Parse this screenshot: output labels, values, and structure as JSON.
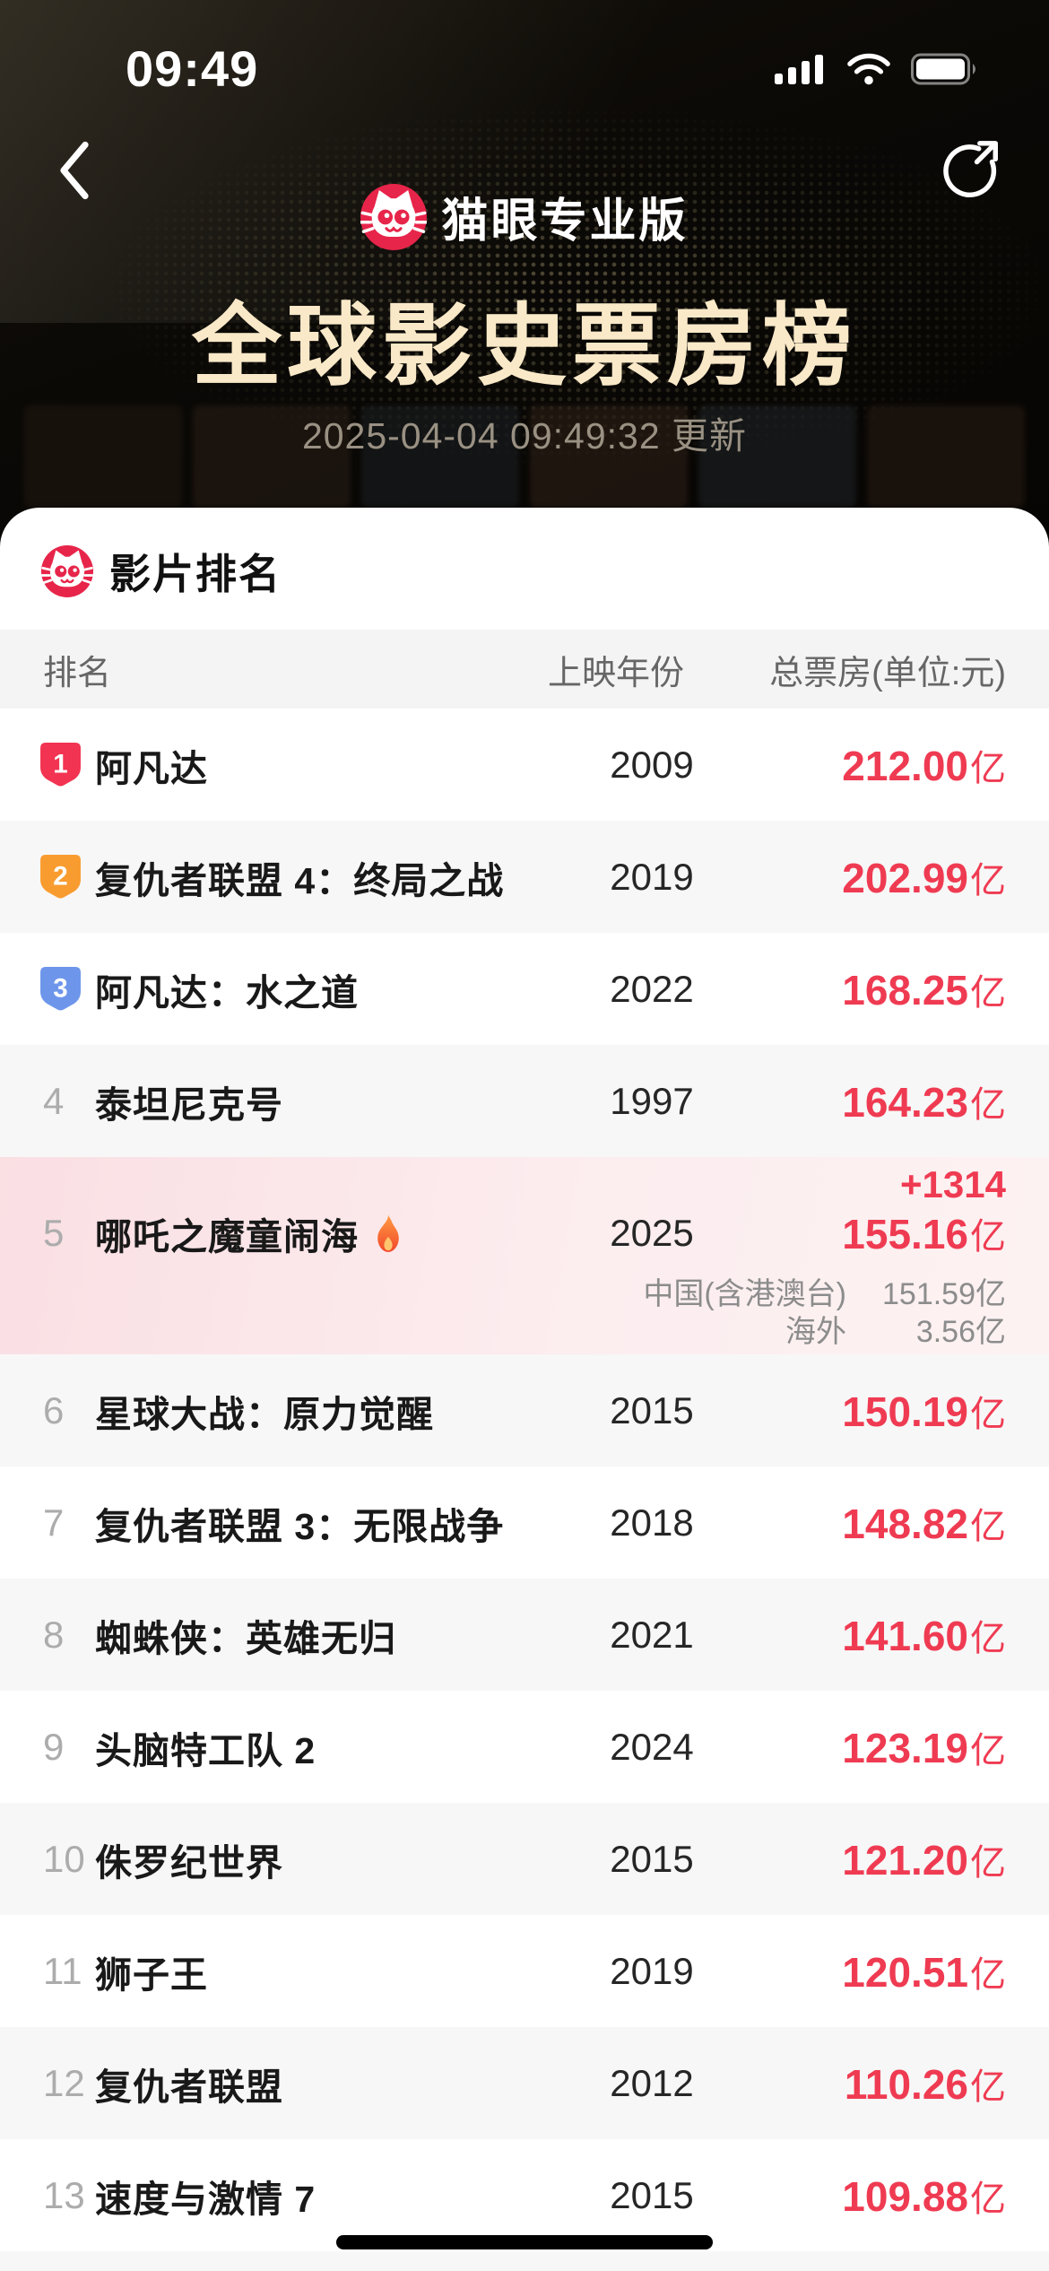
{
  "status_bar": {
    "time": "09:49",
    "icons": [
      "signal-bars-icon",
      "wifi-icon",
      "battery-full-icon"
    ]
  },
  "nav": {
    "back_icon": "chevron-left-icon",
    "share_icon": "share-arrow-icon"
  },
  "hero": {
    "app_name": "猫眼专业版",
    "logo_icon": "maoyan-cat-icon",
    "title": "全球影史票房榜",
    "updated": "2025-04-04 09:49:32 更新"
  },
  "card": {
    "section_title": "影片排名",
    "table": {
      "headers": {
        "rank": "排名",
        "year": "上映年份",
        "gross": "总票房(单位:元)"
      },
      "unit_suffix": "亿",
      "rows": [
        {
          "rank": 1,
          "badge_color": "#F23351",
          "title": "阿凡达",
          "year": "2009",
          "gross": "212.00"
        },
        {
          "rank": 2,
          "badge_color": "#F99C2F",
          "title": "复仇者联盟 4：终局之战",
          "year": "2019",
          "gross": "202.99"
        },
        {
          "rank": 3,
          "badge_color": "#6D96EB",
          "title": "阿凡达：水之道",
          "year": "2022",
          "gross": "168.25"
        },
        {
          "rank": 4,
          "title": "泰坦尼克号",
          "year": "1997",
          "gross": "164.23"
        },
        {
          "rank": 5,
          "title": "哪吒之魔童闹海",
          "year": "2025",
          "gross": "155.16",
          "hot": true,
          "highlight": true,
          "delta": "+1314",
          "breakdown": [
            {
              "label": "中国(含港澳台)",
              "value": "151.59亿"
            },
            {
              "label": "海外",
              "value": "3.56亿"
            }
          ]
        },
        {
          "rank": 6,
          "title": "星球大战：原力觉醒",
          "year": "2015",
          "gross": "150.19"
        },
        {
          "rank": 7,
          "title": "复仇者联盟 3：无限战争",
          "year": "2018",
          "gross": "148.82"
        },
        {
          "rank": 8,
          "title": "蜘蛛侠：英雄无归",
          "year": "2021",
          "gross": "141.60"
        },
        {
          "rank": 9,
          "title": "头脑特工队 2",
          "year": "2024",
          "gross": "123.19"
        },
        {
          "rank": 10,
          "title": "侏罗纪世界",
          "year": "2015",
          "gross": "121.20"
        },
        {
          "rank": 11,
          "title": "狮子王",
          "year": "2019",
          "gross": "120.51"
        },
        {
          "rank": 12,
          "title": "复仇者联盟",
          "year": "2012",
          "gross": "110.26"
        },
        {
          "rank": 13,
          "title": "速度与激情 7",
          "year": "2015",
          "gross": "109.88"
        }
      ]
    }
  },
  "colors": {
    "accent_red": "#EF3B52",
    "title_cream": "#F9E9C8",
    "highlight_row_left": "#FADFE3",
    "highlight_row_right": "#FDF2F2",
    "alt_row": "#F7F7F7",
    "table_head_bg": "#F4F4F4"
  }
}
